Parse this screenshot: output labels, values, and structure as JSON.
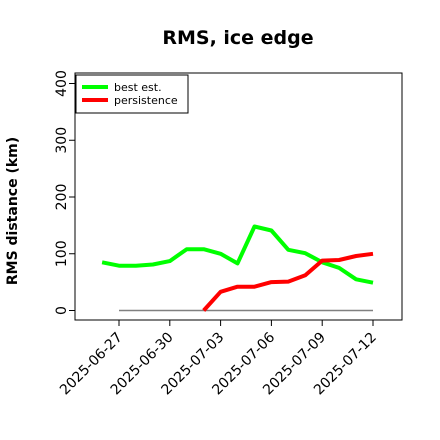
{
  "chart_data": {
    "type": "line",
    "title": "RMS, ice edge",
    "xlabel": "",
    "ylabel": "RMS distance (km)",
    "x": [
      "2025-06-26",
      "2025-06-27",
      "2025-06-28",
      "2025-06-29",
      "2025-06-30",
      "2025-07-01",
      "2025-07-02",
      "2025-07-03",
      "2025-07-04",
      "2025-07-05",
      "2025-07-06",
      "2025-07-07",
      "2025-07-08",
      "2025-07-09",
      "2025-07-10",
      "2025-07-11",
      "2025-07-12"
    ],
    "x_ticks": [
      "2025-06-27",
      "2025-06-30",
      "2025-07-03",
      "2025-07-06",
      "2025-07-09",
      "2025-07-12"
    ],
    "y_ticks": [
      0,
      100,
      200,
      300,
      400
    ],
    "ylim": [
      -5,
      410
    ],
    "grid": false,
    "legend": "top-left",
    "series": [
      {
        "name": "best est.",
        "color": "#00ff00",
        "values": [
          85,
          79,
          79,
          81,
          87,
          108,
          108,
          100,
          83,
          148,
          141,
          107,
          101,
          85,
          75,
          55,
          49
        ]
      },
      {
        "name": "persistence",
        "color": "#ff0000",
        "values": [
          null,
          null,
          null,
          null,
          null,
          null,
          0,
          33,
          42,
          42,
          50,
          51,
          62,
          88,
          89,
          96,
          100
        ]
      }
    ],
    "baseline": {
      "value": 0,
      "color": "#808080"
    }
  }
}
